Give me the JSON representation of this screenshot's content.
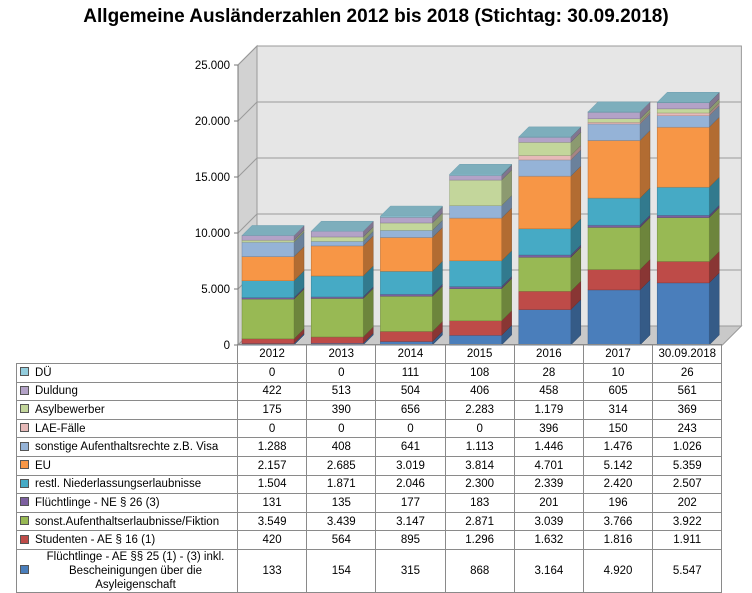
{
  "title": "Allgemeine Ausländerzahlen 2012 bis 2018 (Stichtag: 30.09.2018)",
  "chart_data": {
    "type": "bar",
    "stacked": true,
    "three_d": true,
    "categories": [
      "2012",
      "2013",
      "2014",
      "2015",
      "2016",
      "2017",
      "30.09.2018"
    ],
    "ylim": [
      0,
      25000
    ],
    "yticks": [
      "0",
      "5.000",
      "10.000",
      "15.000",
      "20.000",
      "25.000"
    ],
    "ytick_values": [
      0,
      5000,
      10000,
      15000,
      20000,
      25000
    ],
    "grid": true,
    "series": [
      {
        "name": "Flüchtlinge -  AE §§ 25 (1) - (3) inkl. Bescheinigungen über die Asyleigenschaft",
        "color": "#4a7ebb",
        "values": [
          133,
          154,
          315,
          868,
          3164,
          4920,
          5547
        ],
        "labels": [
          "133",
          "154",
          "315",
          "868",
          "3.164",
          "4.920",
          "5.547"
        ]
      },
      {
        "name": "Studenten - AE § 16 (1)",
        "color": "#be4b48",
        "values": [
          420,
          564,
          895,
          1296,
          1632,
          1816,
          1911
        ],
        "labels": [
          "420",
          "564",
          "895",
          "1.296",
          "1.632",
          "1.816",
          "1.911"
        ]
      },
      {
        "name": "sonst.Aufenthaltserlaubnisse/Fiktion",
        "color": "#98b954",
        "values": [
          3549,
          3439,
          3147,
          2871,
          3039,
          3766,
          3922
        ],
        "labels": [
          "3.549",
          "3.439",
          "3.147",
          "2.871",
          "3.039",
          "3.766",
          "3.922"
        ]
      },
      {
        "name": "Flüchtlinge - NE § 26 (3)",
        "color": "#7d60a0",
        "values": [
          131,
          135,
          177,
          183,
          201,
          196,
          202
        ],
        "labels": [
          "131",
          "135",
          "177",
          "183",
          "201",
          "196",
          "202"
        ]
      },
      {
        "name": "restl. Niederlassungserlaubnisse",
        "color": "#46aac5",
        "values": [
          1504,
          1871,
          2046,
          2300,
          2339,
          2420,
          2507
        ],
        "labels": [
          "1.504",
          "1.871",
          "2.046",
          "2.300",
          "2.339",
          "2.420",
          "2.507"
        ]
      },
      {
        "name": "EU",
        "color": "#f79646",
        "values": [
          2157,
          2685,
          3019,
          3814,
          4701,
          5142,
          5359
        ],
        "labels": [
          "2.157",
          "2.685",
          "3.019",
          "3.814",
          "4.701",
          "5.142",
          "5.359"
        ]
      },
      {
        "name": "sonstige Aufenthaltsrechte z.B. Visa",
        "color": "#95b3d7",
        "values": [
          1288,
          408,
          641,
          1113,
          1446,
          1476,
          1026
        ],
        "labels": [
          "1.288",
          "408",
          "641",
          "1.113",
          "1.446",
          "1.476",
          "1.026"
        ]
      },
      {
        "name": "LAE-Fälle",
        "color": "#e6b9b8",
        "values": [
          0,
          0,
          0,
          0,
          396,
          150,
          243
        ],
        "labels": [
          "0",
          "0",
          "0",
          "0",
          "396",
          "150",
          "243"
        ]
      },
      {
        "name": "Asylbewerber",
        "color": "#c3d69b",
        "values": [
          175,
          390,
          656,
          2283,
          1179,
          314,
          369
        ],
        "labels": [
          "175",
          "390",
          "656",
          "2.283",
          "1.179",
          "314",
          "369"
        ]
      },
      {
        "name": "Duldung",
        "color": "#b3a2c7",
        "values": [
          422,
          513,
          504,
          406,
          458,
          605,
          561
        ],
        "labels": [
          "422",
          "513",
          "504",
          "406",
          "458",
          "605",
          "561"
        ]
      },
      {
        "name": "DÜ",
        "color": "#93cddd",
        "values": [
          0,
          0,
          111,
          108,
          28,
          10,
          26
        ],
        "labels": [
          "0",
          "0",
          "111",
          "108",
          "28",
          "10",
          "26"
        ]
      }
    ]
  }
}
